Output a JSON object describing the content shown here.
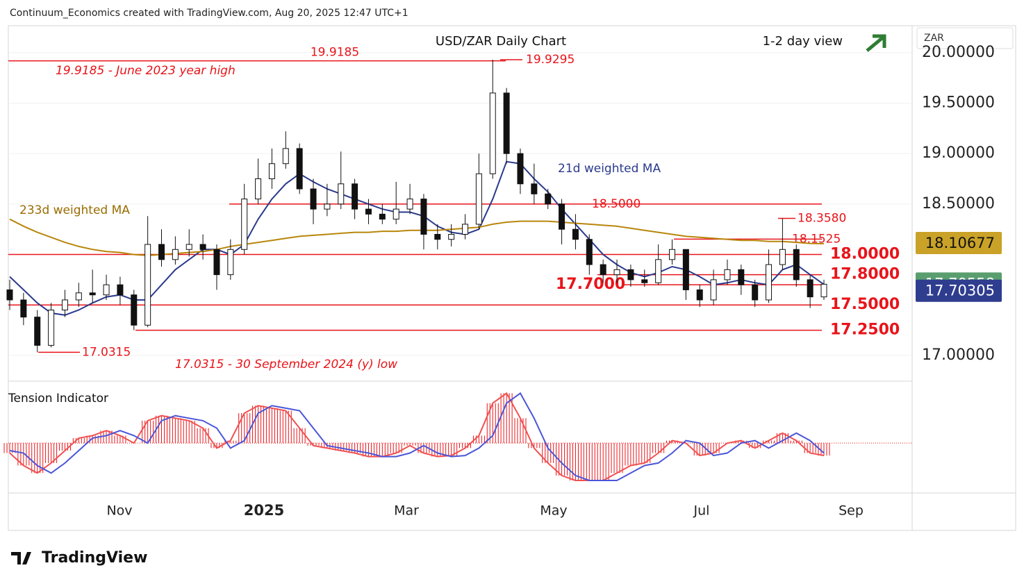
{
  "header": {
    "credit": "Continuum_Economics created with TradingView.com, Aug 20, 2025 12:47 UTC+1",
    "currency": "ZAR",
    "logo": "TradingView"
  },
  "chart_data": {
    "type": "candlestick",
    "title": "USD/ZAR Daily Chart",
    "view": "1-2 day view",
    "x_labels": [
      "Nov",
      "2025",
      "Mar",
      "May",
      "Jul",
      "Sep"
    ],
    "ylim": [
      16.745,
      20.26
    ],
    "yticks": [
      {
        "value": 20,
        "label": "20.00000"
      },
      {
        "value": 19.5,
        "label": "19.50000"
      },
      {
        "value": 19,
        "label": "19.00000"
      },
      {
        "value": 18.5,
        "label": "18.50000"
      },
      {
        "value": 17,
        "label": "17.00000"
      }
    ],
    "open": [
      17.65,
      17.55,
      17.38,
      17.1,
      17.45,
      17.55,
      17.62,
      17.6,
      17.7,
      17.6,
      17.3,
      18.1,
      17.95,
      18.05,
      18.1,
      18.05,
      17.8,
      18.05,
      18.55,
      18.75,
      18.9,
      19.05,
      18.65,
      18.45,
      18.5,
      18.7,
      18.45,
      18.4,
      18.35,
      18.45,
      18.55,
      18.2,
      18.15,
      18.2,
      18.3,
      18.8,
      19.6,
      19.0,
      18.7,
      18.6,
      18.5,
      18.25,
      18.15,
      17.9,
      17.8,
      17.85,
      17.75,
      17.72,
      17.95,
      18.05,
      17.65,
      17.55,
      17.75,
      17.85,
      17.7,
      17.55,
      17.9,
      18.05,
      17.75,
      17.58
    ],
    "high": [
      17.75,
      17.62,
      17.45,
      17.52,
      17.65,
      17.72,
      17.85,
      17.8,
      17.78,
      17.65,
      18.38,
      18.25,
      18.18,
      18.25,
      18.2,
      18.1,
      18.15,
      18.7,
      18.95,
      19.05,
      19.22,
      19.1,
      18.75,
      18.7,
      19.02,
      18.75,
      18.55,
      18.5,
      18.72,
      18.7,
      18.6,
      18.3,
      18.3,
      18.4,
      19.0,
      19.9295,
      19.65,
      19.05,
      18.9,
      18.65,
      18.55,
      18.4,
      18.2,
      17.95,
      17.95,
      17.9,
      17.85,
      18.1,
      18.15,
      18.05,
      17.7,
      17.85,
      17.95,
      17.9,
      17.75,
      18.05,
      18.358,
      18.1,
      17.8,
      17.75
    ],
    "low": [
      17.45,
      17.3,
      17.0315,
      17.08,
      17.38,
      17.48,
      17.52,
      17.55,
      17.5,
      17.25,
      17.28,
      17.88,
      17.9,
      17.98,
      17.95,
      17.65,
      17.75,
      18.0,
      18.5,
      18.65,
      18.85,
      18.6,
      18.3,
      18.38,
      18.45,
      18.35,
      18.3,
      18.3,
      18.3,
      18.4,
      18.05,
      18.05,
      18.08,
      18.15,
      18.25,
      18.75,
      18.9,
      18.6,
      18.5,
      18.45,
      18.1,
      18.05,
      17.8,
      17.72,
      17.72,
      17.68,
      17.68,
      17.7,
      17.9,
      17.55,
      17.48,
      17.5,
      17.7,
      17.6,
      17.48,
      17.52,
      17.85,
      17.68,
      17.47,
      17.55
    ],
    "close": [
      17.55,
      17.38,
      17.1,
      17.45,
      17.55,
      17.62,
      17.6,
      17.7,
      17.6,
      17.3,
      18.1,
      17.95,
      18.05,
      18.1,
      18.05,
      17.8,
      18.05,
      18.55,
      18.75,
      18.9,
      19.05,
      18.65,
      18.45,
      18.5,
      18.7,
      18.45,
      18.4,
      18.35,
      18.45,
      18.55,
      18.2,
      18.15,
      18.2,
      18.3,
      18.8,
      19.6,
      19.0,
      18.7,
      18.6,
      18.5,
      18.25,
      18.15,
      17.9,
      17.8,
      17.85,
      17.75,
      17.72,
      17.95,
      18.05,
      17.65,
      17.55,
      17.75,
      17.85,
      17.7,
      17.55,
      17.9,
      18.05,
      17.75,
      17.58,
      17.70558
    ],
    "series": [
      {
        "name": "21d weighted MA",
        "color": "#2a3a8c",
        "values": [
          17.78,
          17.65,
          17.52,
          17.42,
          17.4,
          17.45,
          17.52,
          17.58,
          17.6,
          17.55,
          17.55,
          17.7,
          17.85,
          17.95,
          18.05,
          18.05,
          18.0,
          18.1,
          18.35,
          18.55,
          18.7,
          18.8,
          18.72,
          18.65,
          18.6,
          18.55,
          18.5,
          18.45,
          18.42,
          18.42,
          18.38,
          18.28,
          18.22,
          18.2,
          18.25,
          18.55,
          18.92,
          18.9,
          18.75,
          18.62,
          18.45,
          18.3,
          18.15,
          18.0,
          17.9,
          17.82,
          17.78,
          17.82,
          17.88,
          17.85,
          17.78,
          17.7,
          17.72,
          17.75,
          17.72,
          17.7,
          17.85,
          17.9,
          17.8,
          17.70305
        ]
      },
      {
        "name": "233d weighted MA",
        "color": "#b8860b",
        "values": [
          18.35,
          18.28,
          18.22,
          18.17,
          18.12,
          18.08,
          18.05,
          18.03,
          18.02,
          18.0,
          17.99,
          18.0,
          18.01,
          18.02,
          18.03,
          18.05,
          18.08,
          18.1,
          18.12,
          18.14,
          18.16,
          18.18,
          18.19,
          18.2,
          18.21,
          18.22,
          18.22,
          18.23,
          18.23,
          18.24,
          18.24,
          18.24,
          18.25,
          18.26,
          18.27,
          18.3,
          18.32,
          18.33,
          18.33,
          18.33,
          18.32,
          18.31,
          18.3,
          18.29,
          18.28,
          18.26,
          18.24,
          18.22,
          18.2,
          18.18,
          18.17,
          18.16,
          18.15,
          18.14,
          18.14,
          18.13,
          18.13,
          18.12,
          18.11,
          18.10677
        ]
      }
    ],
    "levels": [
      {
        "value": 19.9185,
        "label": "19.9185"
      },
      {
        "value": 19.9295,
        "label": "19.9295"
      },
      {
        "value": 18.5,
        "label": "18.5000"
      },
      {
        "value": 18.358,
        "label": "18.3580"
      },
      {
        "value": 18.1525,
        "label": "18.1525"
      },
      {
        "value": 18,
        "label": "18.0000"
      },
      {
        "value": 17.8,
        "label": "17.8000"
      },
      {
        "value": 17.7,
        "label": "17.7000"
      },
      {
        "value": 17.5,
        "label": "17.5000"
      },
      {
        "value": 17.25,
        "label": "17.2500"
      },
      {
        "value": 17.0315,
        "label": "17.0315"
      }
    ],
    "annotations": [
      "19.9185 - June 2023 year high",
      "17.0315 - 30 September 2024 (y) low"
    ],
    "indicator": {
      "title": "Tension Indicator",
      "ylim": [
        -1,
        1.2
      ],
      "values": [
        -0.2,
        -0.45,
        -0.6,
        -0.4,
        -0.15,
        0.1,
        0.15,
        0.25,
        0.15,
        0.0,
        0.45,
        0.55,
        0.5,
        0.45,
        0.3,
        -0.1,
        0.05,
        0.6,
        0.75,
        0.7,
        0.65,
        0.3,
        -0.05,
        -0.1,
        -0.15,
        -0.2,
        -0.27,
        -0.27,
        -0.2,
        -0.05,
        -0.2,
        -0.27,
        -0.25,
        -0.1,
        0.15,
        0.8,
        1.0,
        0.5,
        -0.1,
        -0.4,
        -0.65,
        -0.75,
        -0.75,
        -0.75,
        -0.6,
        -0.45,
        -0.4,
        -0.2,
        0.05,
        0.0,
        -0.25,
        -0.2,
        0.0,
        0.05,
        -0.1,
        0.05,
        0.2,
        0.05,
        -0.2,
        -0.25
      ],
      "signal": [
        -0.15,
        -0.2,
        -0.45,
        -0.6,
        -0.4,
        -0.15,
        0.1,
        0.15,
        0.25,
        0.15,
        0.0,
        0.45,
        0.55,
        0.5,
        0.45,
        0.3,
        -0.1,
        0.05,
        0.6,
        0.75,
        0.7,
        0.65,
        0.3,
        -0.05,
        -0.1,
        -0.15,
        -0.2,
        -0.27,
        -0.27,
        -0.2,
        -0.05,
        -0.2,
        -0.27,
        -0.25,
        -0.1,
        0.15,
        0.8,
        1.0,
        0.5,
        -0.1,
        -0.4,
        -0.65,
        -0.75,
        -0.75,
        -0.75,
        -0.6,
        -0.45,
        -0.4,
        -0.2,
        0.05,
        0.0,
        -0.25,
        -0.2,
        0.0,
        0.05,
        -0.1,
        0.05,
        0.2,
        0.05,
        -0.2
      ]
    }
  }
}
